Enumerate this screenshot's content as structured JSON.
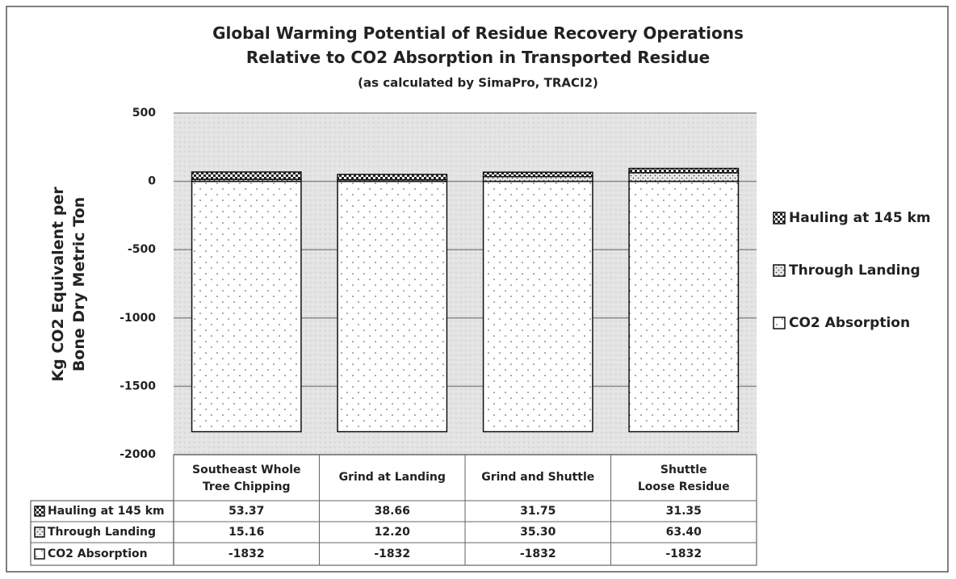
{
  "chart_data": {
    "type": "stacked_bar",
    "title": "Global Warming Potential of Residue Recovery Operations Relative to CO2 Absorption in Transported Residue",
    "subtitle": "(as calculated by SimaPro, TRACI2)",
    "y_label": "Kg CO2 Equivalent per Bone Dry Metric Ton",
    "categories": [
      "Southeast Whole Tree Chipping",
      "Grind at Landing",
      "Grind and Shuttle",
      "Shuttle Loose Residue"
    ],
    "series": [
      {
        "name": "Hauling at 145 km",
        "color": "#222222",
        "values": [
          53.37,
          38.66,
          31.75,
          31.35
        ]
      },
      {
        "name": "Through Landing",
        "color": "#e8e8e8",
        "values": [
          15.16,
          12.2,
          35.3,
          63.4
        ],
        "value_labels": [
          "15.16",
          "12.20",
          "35.30",
          "63.40"
        ]
      },
      {
        "name": "CO2 Absorption",
        "color": "#ffffff",
        "values": [
          -1832,
          -1832,
          -1832,
          -1832
        ]
      }
    ],
    "ylim": [
      -2000,
      500
    ],
    "yticks": [
      500,
      0,
      -500,
      -1000,
      -1500,
      -2000
    ],
    "grid": true,
    "legend": "right",
    "data_table": true
  }
}
